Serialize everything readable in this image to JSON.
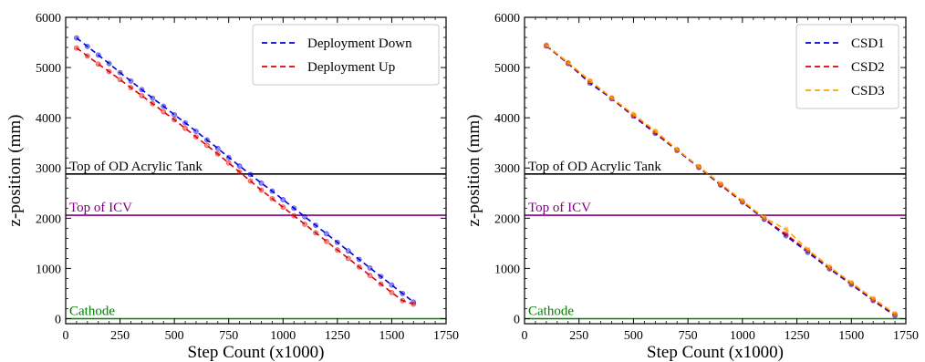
{
  "chart_data": [
    {
      "type": "line",
      "xlabel": "Step Count (x1000)",
      "ylabel": "z-position (mm)",
      "xlim": [
        0,
        1750
      ],
      "ylim": [
        -100,
        6000
      ],
      "xticks": [
        0,
        250,
        500,
        750,
        1000,
        1250,
        1500,
        1750
      ],
      "yticks": [
        0,
        1000,
        2000,
        3000,
        4000,
        5000,
        6000
      ],
      "legend_position": "top-right",
      "grid": false,
      "series": [
        {
          "name": "Deployment Down",
          "color": "#0000dd",
          "style": "dashed",
          "x": [
            50,
            100,
            150,
            200,
            250,
            300,
            350,
            400,
            450,
            500,
            550,
            600,
            650,
            700,
            750,
            800,
            850,
            900,
            950,
            1000,
            1050,
            1100,
            1150,
            1200,
            1250,
            1300,
            1350,
            1400,
            1450,
            1500,
            1550,
            1600
          ],
          "y": [
            5590,
            5420,
            5250,
            5080,
            4900,
            4730,
            4560,
            4390,
            4230,
            4060,
            3900,
            3730,
            3560,
            3390,
            3210,
            3040,
            2870,
            2700,
            2540,
            2370,
            2200,
            2030,
            1860,
            1690,
            1520,
            1350,
            1180,
            1010,
            840,
            670,
            500,
            330
          ]
        },
        {
          "name": "Deployment Up",
          "color": "#dd0000",
          "style": "dashed",
          "x": [
            50,
            100,
            150,
            200,
            250,
            300,
            350,
            400,
            450,
            500,
            550,
            600,
            650,
            700,
            750,
            800,
            850,
            900,
            950,
            1000,
            1050,
            1100,
            1150,
            1200,
            1250,
            1300,
            1350,
            1400,
            1450,
            1500,
            1550,
            1600
          ],
          "y": [
            5390,
            5230,
            5070,
            4920,
            4760,
            4600,
            4440,
            4280,
            4120,
            3960,
            3790,
            3620,
            3450,
            3280,
            3100,
            2920,
            2740,
            2560,
            2390,
            2220,
            2050,
            1880,
            1710,
            1540,
            1370,
            1200,
            1030,
            860,
            690,
            520,
            360,
            290
          ]
        }
      ],
      "reference_lines": [
        {
          "label": "Top of OD Acrylic Tank",
          "y": 2880,
          "color": "#000000"
        },
        {
          "label": "Top of ICV",
          "y": 2060,
          "color": "#800080"
        },
        {
          "label": "Cathode",
          "y": 0,
          "color": "#008000"
        }
      ]
    },
    {
      "type": "line",
      "xlabel": "Step Count (x1000)",
      "ylabel": "z-position (mm)",
      "xlim": [
        0,
        1750
      ],
      "ylim": [
        -100,
        6000
      ],
      "xticks": [
        0,
        250,
        500,
        750,
        1000,
        1250,
        1500,
        1750
      ],
      "yticks": [
        0,
        1000,
        2000,
        3000,
        4000,
        5000,
        6000
      ],
      "legend_position": "top-right",
      "grid": false,
      "series": [
        {
          "name": "CSD1",
          "color": "#0000dd",
          "style": "dashed",
          "x": [
            100,
            200,
            300,
            400,
            500,
            600,
            700,
            800,
            900,
            1000,
            1100,
            1200,
            1300,
            1400,
            1500,
            1600,
            1700
          ],
          "y": [
            5430,
            5080,
            4690,
            4380,
            4030,
            3690,
            3350,
            3010,
            2660,
            2320,
            1980,
            1650,
            1320,
            990,
            680,
            360,
            60
          ]
        },
        {
          "name": "CSD2",
          "color": "#dd0000",
          "style": "dashed",
          "x": [
            100,
            200,
            300,
            400,
            500,
            600,
            700,
            800,
            900,
            1000,
            1100,
            1200,
            1300,
            1400,
            1500,
            1600,
            1700
          ],
          "y": [
            5440,
            5090,
            4720,
            4390,
            4050,
            3710,
            3360,
            3020,
            2670,
            2330,
            1990,
            1680,
            1350,
            1010,
            700,
            380,
            80
          ]
        },
        {
          "name": "CSD3",
          "color": "#ffa500",
          "style": "dashed",
          "x": [
            100,
            200,
            300,
            400,
            500,
            600,
            700,
            800,
            900,
            1000,
            1100,
            1200,
            1300,
            1400,
            1500,
            1600,
            1700
          ],
          "y": [
            5450,
            5100,
            4740,
            4400,
            4070,
            3740,
            3370,
            3030,
            2690,
            2350,
            2010,
            1780,
            1380,
            1030,
            720,
            400,
            100
          ]
        }
      ],
      "reference_lines": [
        {
          "label": "Top of OD Acrylic Tank",
          "y": 2880,
          "color": "#000000"
        },
        {
          "label": "Top of ICV",
          "y": 2060,
          "color": "#800080"
        },
        {
          "label": "Cathode",
          "y": 0,
          "color": "#008000"
        }
      ]
    }
  ]
}
